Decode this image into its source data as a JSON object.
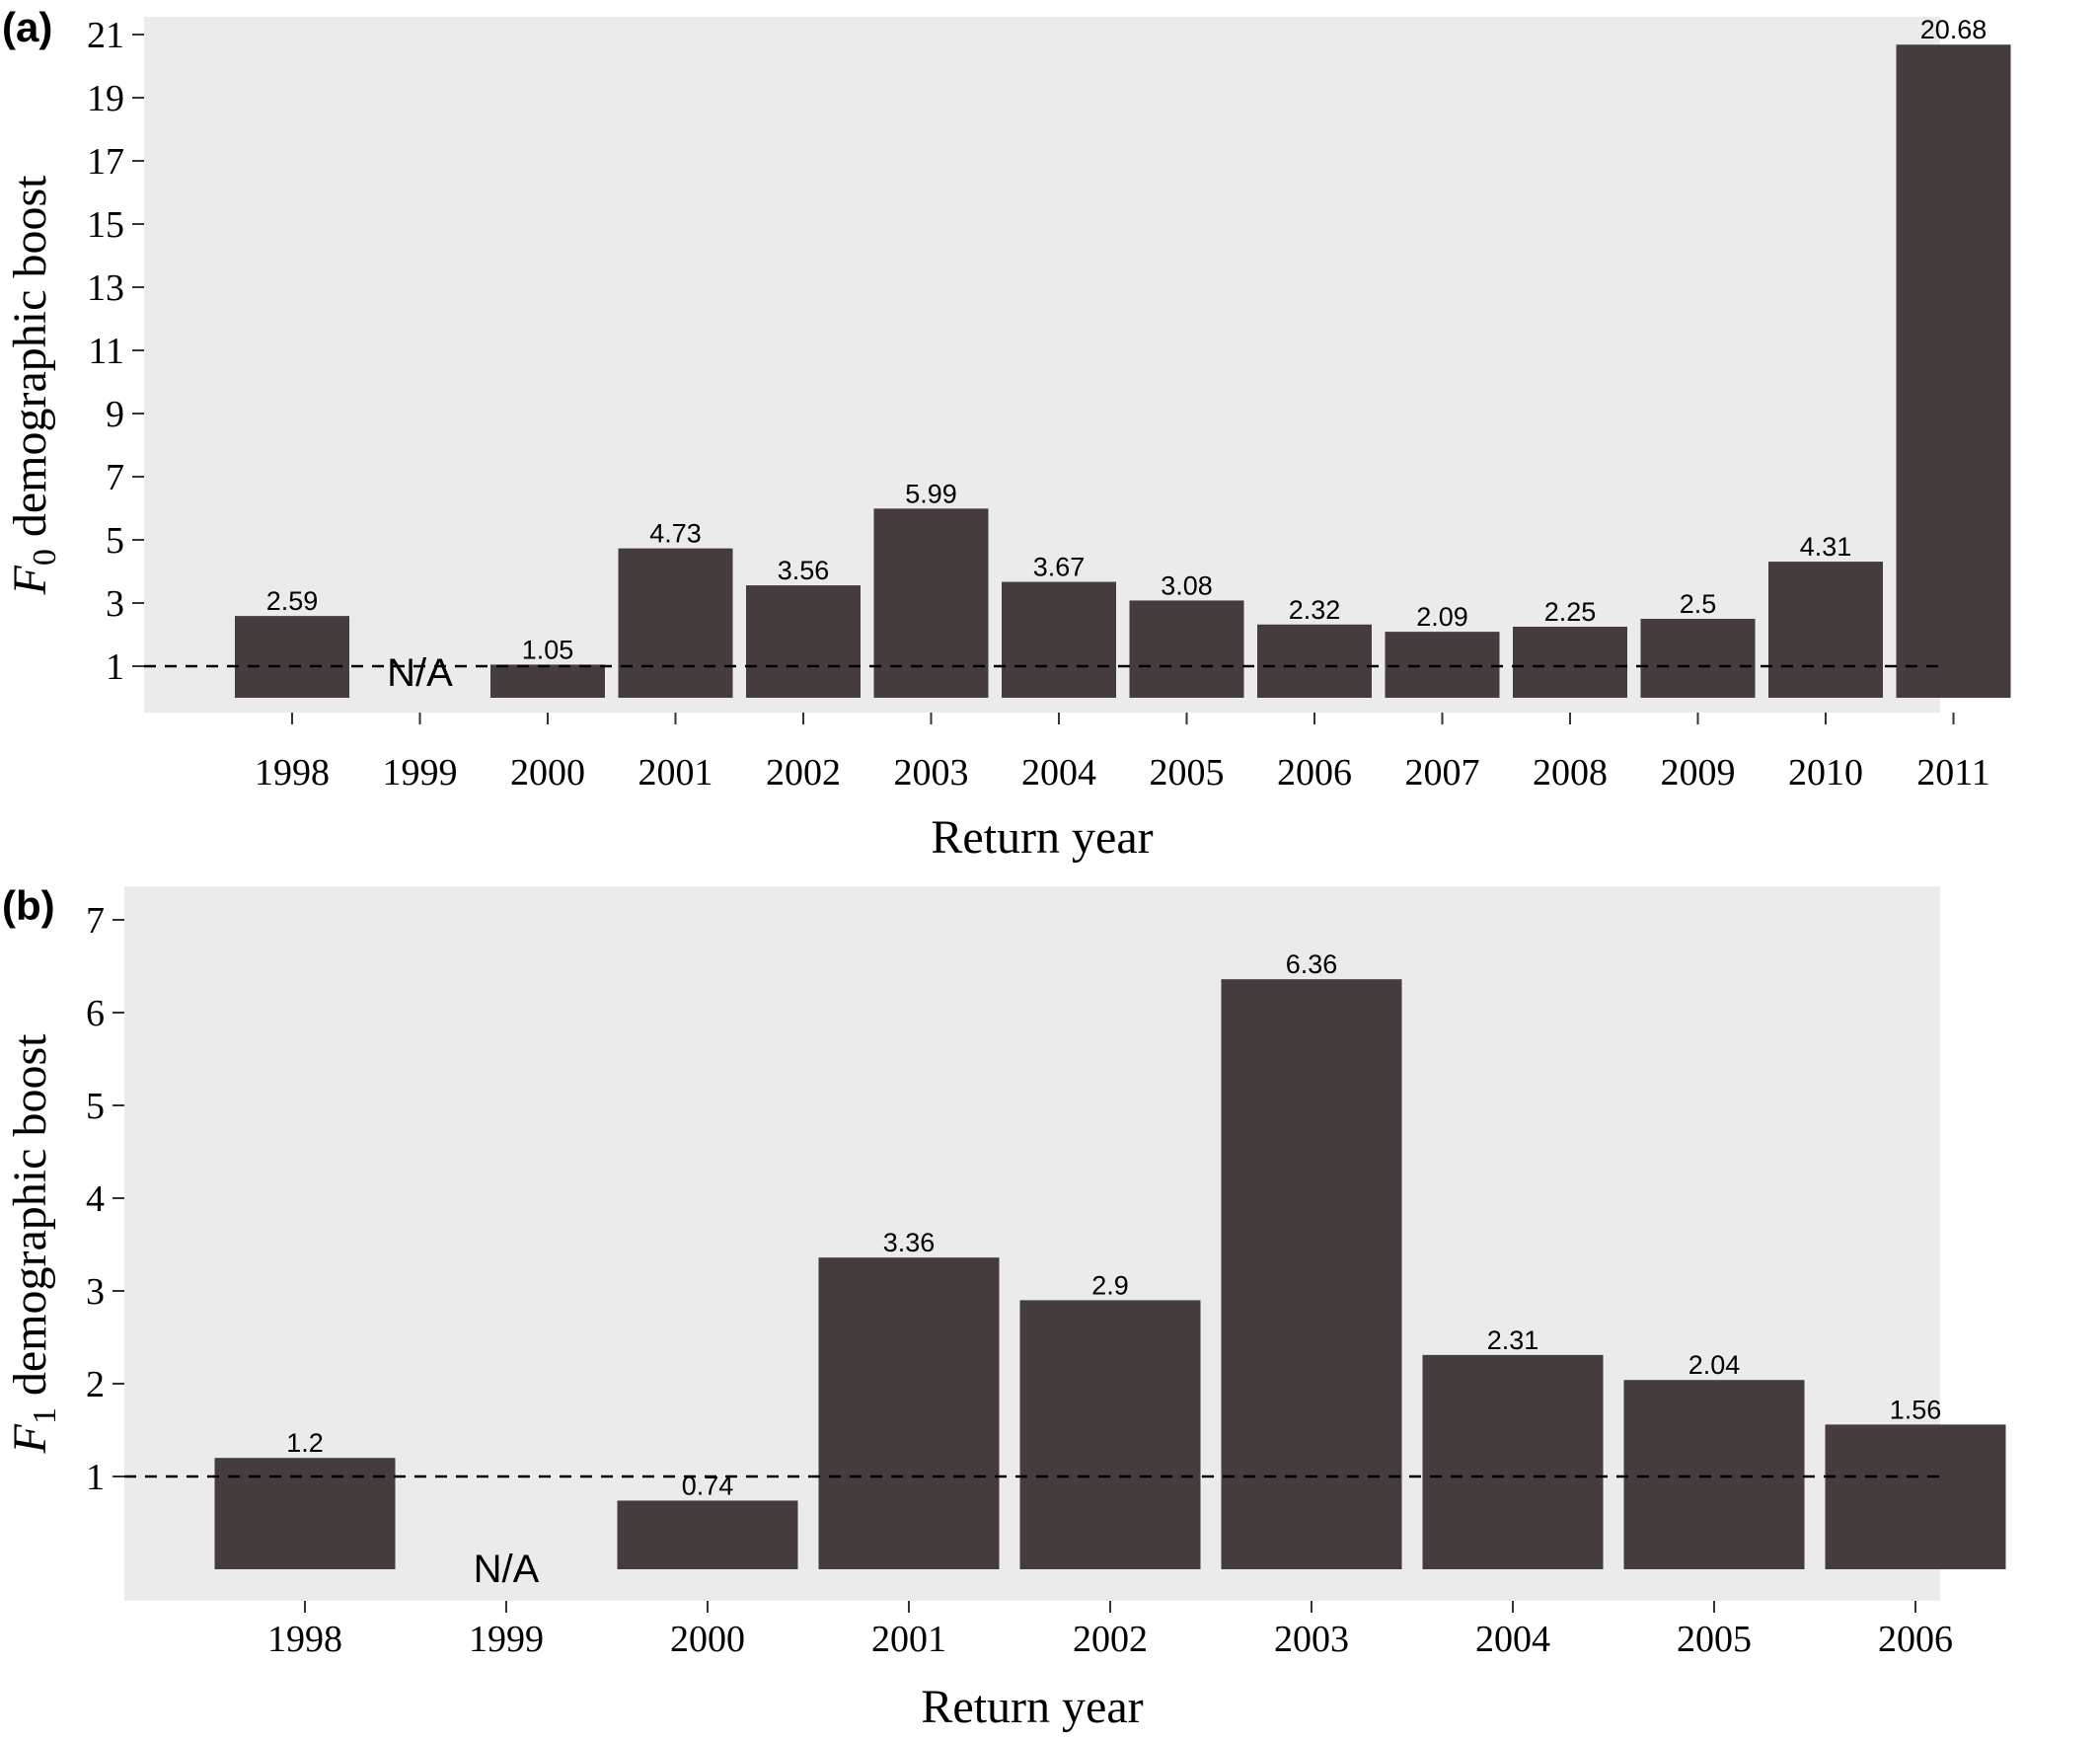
{
  "chart_data": [
    {
      "type": "bar",
      "panel_label": "(a)",
      "categories": [
        "1998",
        "1999",
        "2000",
        "2001",
        "2002",
        "2003",
        "2004",
        "2005",
        "2006",
        "2007",
        "2008",
        "2009",
        "2010",
        "2011"
      ],
      "values": [
        2.59,
        null,
        1.05,
        4.73,
        3.56,
        5.99,
        3.67,
        3.08,
        2.32,
        2.09,
        2.25,
        2.5,
        4.31,
        20.68
      ],
      "value_labels": [
        "2.59",
        "N/A",
        "1.05",
        "4.73",
        "3.56",
        "5.99",
        "3.67",
        "3.08",
        "2.32",
        "2.09",
        "2.25",
        "2.5",
        "4.31",
        "20.68"
      ],
      "xlabel": "Return year",
      "ylabel_prefix": "F",
      "ylabel_subscript": "0",
      "ylabel_suffix": " demographic boost",
      "yticks": [
        "1",
        "3",
        "5",
        "7",
        "9",
        "11",
        "13",
        "15",
        "17",
        "19",
        "21"
      ],
      "ylim": [
        0,
        21.6
      ],
      "bar_base": 0,
      "reference_line": 1,
      "grid": false,
      "colors": {
        "bar": "#453c3e",
        "panel_bg": "#ebebeb",
        "reference_line": "#000000"
      }
    },
    {
      "type": "bar",
      "panel_label": "(b)",
      "categories": [
        "1998",
        "1999",
        "2000",
        "2001",
        "2002",
        "2003",
        "2004",
        "2005",
        "2006"
      ],
      "values": [
        1.2,
        null,
        0.74,
        3.36,
        2.9,
        6.36,
        2.31,
        2.04,
        1.56
      ],
      "value_labels": [
        "1.2",
        "N/A",
        "0.74",
        "3.36",
        "2.9",
        "6.36",
        "2.31",
        "2.04",
        "1.56"
      ],
      "xlabel": "Return year",
      "ylabel_prefix": "F",
      "ylabel_subscript": "1",
      "ylabel_suffix": " demographic boost",
      "yticks": [
        "1",
        "2",
        "3",
        "4",
        "5",
        "6",
        "7"
      ],
      "ylim": [
        0,
        7.4
      ],
      "bar_base": 0,
      "reference_line": 1,
      "grid": false,
      "colors": {
        "bar": "#453c3e",
        "panel_bg": "#ebebeb",
        "reference_line": "#000000"
      }
    }
  ]
}
